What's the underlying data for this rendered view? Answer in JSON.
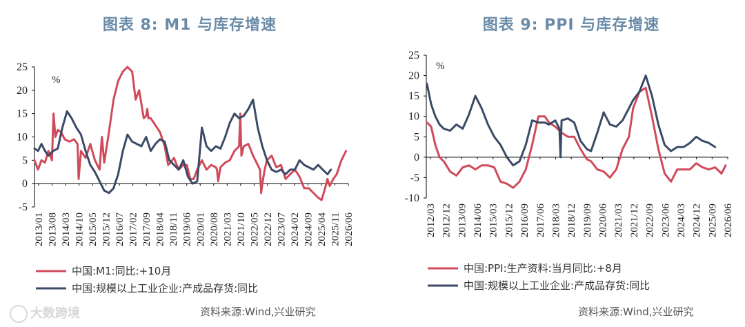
{
  "watermark": "大数跨境",
  "chart_data": [
    {
      "type": "line",
      "title": "图表 8:  M1 与库存增速",
      "unit": "%",
      "source": "资料来源:Wind,兴业研究",
      "ylim": [
        -5,
        25
      ],
      "yticks": [
        -5,
        0,
        5,
        10,
        15,
        20,
        25
      ],
      "xlim": [
        2013.0,
        2026.5
      ],
      "xtick_labels": [
        "2013/01",
        "2013/08",
        "2014/03",
        "2014/10",
        "2015/05",
        "2015/12",
        "2016/07",
        "2017/02",
        "2017/09",
        "2018/04",
        "2018/11",
        "2019/06",
        "2020/01",
        "2020/08",
        "2021/03",
        "2021/10",
        "2022/05",
        "2022/12",
        "2023/07",
        "2024/02",
        "2024/09",
        "2025/04",
        "2025/11",
        "2026/06"
      ],
      "series": [
        {
          "name": "中国:M1:同比:+10月",
          "color": "#d04a5a",
          "x": [
            2013.0,
            2013.15,
            2013.3,
            2013.45,
            2013.6,
            2013.75,
            2013.82,
            2013.9,
            2014.0,
            2014.15,
            2014.3,
            2014.5,
            2014.7,
            2014.85,
            2014.9,
            2015.0,
            2015.2,
            2015.4,
            2015.6,
            2015.8,
            2015.9,
            2016.0,
            2016.2,
            2016.4,
            2016.6,
            2016.8,
            2017.0,
            2017.2,
            2017.35,
            2017.5,
            2017.7,
            2017.8,
            2017.85,
            2017.9,
            2018.0,
            2018.2,
            2018.4,
            2018.6,
            2018.75,
            2018.85,
            2019.0,
            2019.2,
            2019.4,
            2019.55,
            2019.7,
            2019.85,
            2020.0,
            2020.2,
            2020.4,
            2020.6,
            2020.8,
            2020.85,
            2020.9,
            2021.0,
            2021.2,
            2021.4,
            2021.6,
            2021.8,
            2021.85,
            2021.9,
            2022.0,
            2022.2,
            2022.4,
            2022.6,
            2022.7,
            2022.75,
            2022.8,
            2022.9,
            2023.0,
            2023.2,
            2023.4,
            2023.6,
            2023.8,
            2024.0,
            2024.2,
            2024.4,
            2024.6,
            2024.8,
            2025.0,
            2025.2,
            2025.35,
            2025.5,
            2025.6,
            2025.7,
            2025.85,
            2026.0,
            2026.2,
            2026.4
          ],
          "y": [
            5,
            3,
            5,
            4.5,
            7,
            5,
            15,
            10,
            11.5,
            11,
            9.5,
            9,
            9.5,
            8.5,
            1,
            7,
            5.5,
            8.5,
            5,
            3,
            10,
            4.5,
            11,
            18,
            22,
            24,
            25,
            24,
            18,
            20,
            14,
            14.5,
            16,
            14,
            14,
            12.5,
            11,
            8,
            4,
            4.5,
            5.5,
            3,
            4,
            4,
            1,
            1,
            3,
            5,
            3,
            4,
            3.5,
            3,
            0.5,
            3.5,
            4.5,
            5,
            7,
            8,
            15,
            6,
            8,
            8.5,
            6,
            4,
            3,
            -2,
            0,
            3,
            5,
            6,
            3.5,
            4,
            1,
            2,
            3,
            1.5,
            -1,
            -1,
            -2,
            -3,
            -3.5,
            -1,
            1,
            -0.5,
            1,
            2,
            5,
            7
          ]
        },
        {
          "name": "中国:规模以上工业企业:产成品存货:同比",
          "color": "#3b4a66",
          "x": [
            2013.0,
            2013.15,
            2013.3,
            2013.45,
            2013.6,
            2013.8,
            2014.0,
            2014.2,
            2014.4,
            2014.6,
            2014.8,
            2015.0,
            2015.2,
            2015.4,
            2015.6,
            2015.8,
            2016.0,
            2016.2,
            2016.4,
            2016.6,
            2016.8,
            2017.0,
            2017.2,
            2017.4,
            2017.6,
            2017.8,
            2018.0,
            2018.2,
            2018.4,
            2018.6,
            2018.8,
            2019.0,
            2019.2,
            2019.4,
            2019.6,
            2019.8,
            2020.0,
            2020.2,
            2020.4,
            2020.6,
            2020.8,
            2021.0,
            2021.2,
            2021.4,
            2021.6,
            2021.8,
            2022.0,
            2022.2,
            2022.4,
            2022.6,
            2022.8,
            2023.0,
            2023.2,
            2023.4,
            2023.6,
            2023.8,
            2024.0,
            2024.2,
            2024.4,
            2024.6,
            2024.8,
            2025.0,
            2025.2,
            2025.4,
            2025.6,
            2025.75
          ],
          "y": [
            7.5,
            7,
            8.5,
            7,
            6,
            7,
            7.5,
            12,
            15.5,
            14,
            12,
            10.5,
            7,
            4,
            2.5,
            0.5,
            -1.5,
            -2,
            -1,
            2,
            7,
            10.5,
            9,
            8.5,
            8,
            10,
            7,
            8.5,
            9.5,
            9,
            5,
            4,
            3,
            5,
            1.5,
            0,
            0.5,
            12,
            8,
            7,
            8,
            7.5,
            10,
            13,
            15,
            14,
            14.5,
            16,
            18,
            12,
            8,
            5,
            3,
            2.5,
            3,
            2,
            3,
            3,
            5,
            4,
            3.5,
            3,
            4,
            3,
            2,
            3
          ]
        }
      ]
    },
    {
      "type": "line",
      "title": "图表 9:  PPI 与库存增速",
      "unit": "%",
      "source": "资料来源:Wind,兴业研究",
      "ylim": [
        -10,
        25
      ],
      "yticks": [
        -10,
        -5,
        0,
        5,
        10,
        15,
        20,
        25
      ],
      "xlim": [
        2012.17,
        2026.5
      ],
      "xtick_labels": [
        "2012/03",
        "2012/12",
        "2013/09",
        "2014/06",
        "2015/03",
        "2015/12",
        "2016/09",
        "2017/06",
        "2018/03",
        "2018/12",
        "2019/09",
        "2020/06",
        "2021/03",
        "2021/12",
        "2022/09",
        "2023/06",
        "2024/03",
        "2024/12",
        "2025/09",
        "2026/06"
      ],
      "series": [
        {
          "name": "中国:PPI:生产资料:当月同比:+8月",
          "color": "#d04a5a",
          "x": [
            2012.2,
            2012.4,
            2012.6,
            2012.8,
            2013.0,
            2013.3,
            2013.6,
            2013.9,
            2014.2,
            2014.5,
            2014.8,
            2015.1,
            2015.4,
            2015.7,
            2016.0,
            2016.3,
            2016.6,
            2016.9,
            2017.2,
            2017.5,
            2017.8,
            2018.0,
            2018.3,
            2018.6,
            2018.9,
            2019.2,
            2019.5,
            2019.8,
            2020.0,
            2020.3,
            2020.6,
            2020.9,
            2021.2,
            2021.5,
            2021.8,
            2022.0,
            2022.3,
            2022.6,
            2022.9,
            2023.2,
            2023.5,
            2023.8,
            2024.1,
            2024.4,
            2024.7,
            2025.0,
            2025.3,
            2025.6,
            2025.9,
            2026.2,
            2026.4
          ],
          "y": [
            8.5,
            7.5,
            3,
            0,
            -1,
            -3.5,
            -4.5,
            -2.5,
            -2,
            -3,
            -2,
            -2,
            -2.5,
            -6,
            -6.5,
            -7.5,
            -6,
            -3,
            3,
            10,
            10,
            8.5,
            7.5,
            6,
            5,
            5,
            2,
            -0.5,
            -1,
            -3,
            -3.5,
            -5,
            -3,
            2,
            5,
            12,
            16,
            17,
            10,
            2,
            -4,
            -6,
            -3,
            -3,
            -3,
            -1.5,
            -2.5,
            -3,
            -2.5,
            -4,
            -2
          ]
        },
        {
          "name": "中国:规模以上工业企业:产成品存货:同比",
          "color": "#3b4a66",
          "x": [
            2012.2,
            2012.4,
            2012.6,
            2012.8,
            2013.0,
            2013.3,
            2013.6,
            2013.9,
            2014.2,
            2014.5,
            2014.8,
            2015.1,
            2015.4,
            2015.7,
            2016.0,
            2016.3,
            2016.6,
            2016.9,
            2017.2,
            2017.5,
            2017.8,
            2018.0,
            2018.3,
            2018.5,
            2018.55,
            2018.6,
            2018.9,
            2019.2,
            2019.5,
            2019.8,
            2020.0,
            2020.3,
            2020.6,
            2020.9,
            2021.2,
            2021.5,
            2021.8,
            2022.0,
            2022.3,
            2022.6,
            2022.9,
            2023.2,
            2023.5,
            2023.8,
            2024.1,
            2024.4,
            2024.7,
            2025.0,
            2025.3,
            2025.6,
            2025.9
          ],
          "y": [
            18,
            13,
            10,
            8,
            7,
            6.5,
            8,
            7,
            10.5,
            15,
            12,
            8,
            5,
            3,
            0,
            -2,
            -1,
            3,
            9,
            8.5,
            8.5,
            8,
            9,
            7,
            0,
            9,
            9.5,
            8.5,
            4,
            2,
            1.5,
            6,
            11,
            8,
            7.5,
            9,
            12,
            14,
            16,
            20,
            15,
            8,
            3,
            1.5,
            2.5,
            2.5,
            3.5,
            5,
            4,
            3.5,
            2.5
          ]
        }
      ]
    }
  ]
}
